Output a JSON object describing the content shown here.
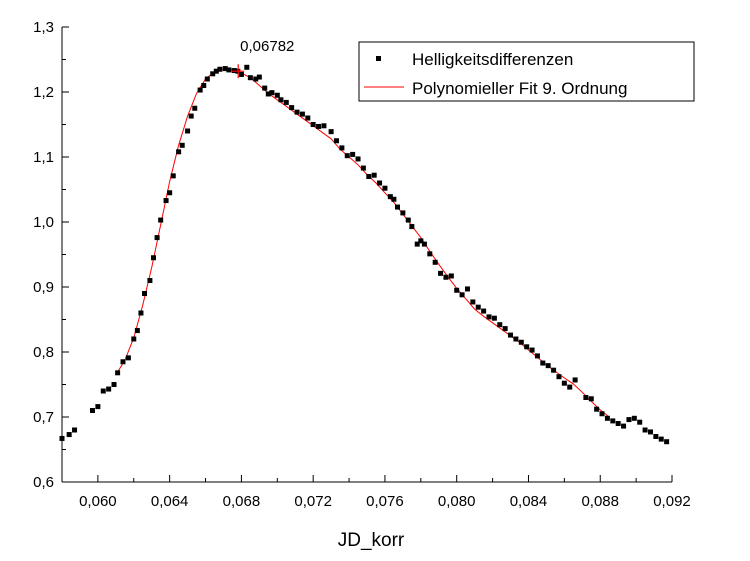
{
  "chart_data": {
    "type": "scatter",
    "title": "",
    "xlabel": "JD_korr",
    "ylabel": "",
    "xlim": [
      0.058,
      0.092
    ],
    "ylim": [
      0.6,
      1.3
    ],
    "x_ticks": [
      0.06,
      0.064,
      0.068,
      0.072,
      0.076,
      0.08,
      0.084,
      0.088,
      0.092
    ],
    "x_tick_labels": [
      "0,060",
      "0,064",
      "0,068",
      "0,072",
      "0,076",
      "0,080",
      "0,084",
      "0,088",
      "0,092"
    ],
    "y_ticks": [
      0.6,
      0.7,
      0.8,
      0.9,
      1.0,
      1.1,
      1.2,
      1.3
    ],
    "y_tick_labels": [
      "0,6",
      "0,7",
      "0,8",
      "0,9",
      "1,0",
      "1,1",
      "1,2",
      "1,3"
    ],
    "grid": false,
    "legend_position": "top-right",
    "annotations": [
      {
        "text": "0,06782",
        "x": 0.06782,
        "y": 1.232
      }
    ],
    "colors": {
      "points": "#000000",
      "fit": "#ff0000",
      "axes": "#000000"
    },
    "series": [
      {
        "name": "Helligkeitsdifferenzen",
        "kind": "points",
        "points": [
          [
            0.058,
            0.667
          ],
          [
            0.0584,
            0.673
          ],
          [
            0.0587,
            0.68
          ],
          [
            0.0597,
            0.71
          ],
          [
            0.06,
            0.716
          ],
          [
            0.0603,
            0.74
          ],
          [
            0.0606,
            0.743
          ],
          [
            0.0609,
            0.75
          ],
          [
            0.0611,
            0.768
          ],
          [
            0.0614,
            0.785
          ],
          [
            0.0617,
            0.791
          ],
          [
            0.062,
            0.82
          ],
          [
            0.0622,
            0.833
          ],
          [
            0.0624,
            0.86
          ],
          [
            0.0626,
            0.89
          ],
          [
            0.0629,
            0.91
          ],
          [
            0.0631,
            0.945
          ],
          [
            0.0633,
            0.976
          ],
          [
            0.0635,
            1.003
          ],
          [
            0.0638,
            1.033
          ],
          [
            0.064,
            1.045
          ],
          [
            0.0642,
            1.071
          ],
          [
            0.0645,
            1.108
          ],
          [
            0.0647,
            1.118
          ],
          [
            0.065,
            1.14
          ],
          [
            0.0652,
            1.163
          ],
          [
            0.0654,
            1.175
          ],
          [
            0.0657,
            1.203
          ],
          [
            0.0659,
            1.21
          ],
          [
            0.0661,
            1.22
          ],
          [
            0.0664,
            1.228
          ],
          [
            0.0666,
            1.232
          ],
          [
            0.0668,
            1.235
          ],
          [
            0.0671,
            1.236
          ],
          [
            0.0673,
            1.234
          ],
          [
            0.0676,
            1.233
          ],
          [
            0.0678,
            1.232
          ],
          [
            0.068,
            1.227
          ],
          [
            0.0683,
            1.238
          ],
          [
            0.0685,
            1.222
          ],
          [
            0.0688,
            1.22
          ],
          [
            0.069,
            1.223
          ],
          [
            0.0693,
            1.206
          ],
          [
            0.0695,
            1.197
          ],
          [
            0.0697,
            1.199
          ],
          [
            0.07,
            1.195
          ],
          [
            0.0702,
            1.188
          ],
          [
            0.0705,
            1.184
          ],
          [
            0.0708,
            1.176
          ],
          [
            0.0711,
            1.169
          ],
          [
            0.0714,
            1.166
          ],
          [
            0.0717,
            1.16
          ],
          [
            0.072,
            1.15
          ],
          [
            0.0723,
            1.147
          ],
          [
            0.0726,
            1.148
          ],
          [
            0.073,
            1.139
          ],
          [
            0.0733,
            1.125
          ],
          [
            0.0736,
            1.114
          ],
          [
            0.0739,
            1.102
          ],
          [
            0.0742,
            1.104
          ],
          [
            0.0745,
            1.097
          ],
          [
            0.0748,
            1.083
          ],
          [
            0.0751,
            1.07
          ],
          [
            0.0754,
            1.072
          ],
          [
            0.0757,
            1.06
          ],
          [
            0.076,
            1.052
          ],
          [
            0.0763,
            1.039
          ],
          [
            0.0765,
            1.035
          ],
          [
            0.0767,
            1.023
          ],
          [
            0.077,
            1.014
          ],
          [
            0.0773,
            1.003
          ],
          [
            0.0775,
            0.993
          ],
          [
            0.0778,
            0.966
          ],
          [
            0.078,
            0.971
          ],
          [
            0.0782,
            0.966
          ],
          [
            0.0785,
            0.951
          ],
          [
            0.0788,
            0.938
          ],
          [
            0.0791,
            0.921
          ],
          [
            0.0794,
            0.915
          ],
          [
            0.0797,
            0.917
          ],
          [
            0.08,
            0.895
          ],
          [
            0.0803,
            0.888
          ],
          [
            0.0806,
            0.897
          ],
          [
            0.0809,
            0.877
          ],
          [
            0.0812,
            0.869
          ],
          [
            0.0815,
            0.863
          ],
          [
            0.0818,
            0.854
          ],
          [
            0.0821,
            0.852
          ],
          [
            0.0824,
            0.842
          ],
          [
            0.0827,
            0.836
          ],
          [
            0.083,
            0.826
          ],
          [
            0.0833,
            0.82
          ],
          [
            0.0836,
            0.815
          ],
          [
            0.0839,
            0.808
          ],
          [
            0.0842,
            0.803
          ],
          [
            0.0845,
            0.794
          ],
          [
            0.0848,
            0.783
          ],
          [
            0.0851,
            0.779
          ],
          [
            0.0854,
            0.772
          ],
          [
            0.0857,
            0.762
          ],
          [
            0.086,
            0.752
          ],
          [
            0.0863,
            0.746
          ],
          [
            0.0866,
            0.757
          ],
          [
            0.0872,
            0.73
          ],
          [
            0.0875,
            0.728
          ],
          [
            0.0878,
            0.712
          ],
          [
            0.0881,
            0.705
          ],
          [
            0.0884,
            0.698
          ],
          [
            0.0887,
            0.694
          ],
          [
            0.089,
            0.69
          ],
          [
            0.0893,
            0.686
          ],
          [
            0.0896,
            0.696
          ],
          [
            0.0899,
            0.698
          ],
          [
            0.0902,
            0.692
          ],
          [
            0.0905,
            0.68
          ],
          [
            0.0908,
            0.677
          ],
          [
            0.0911,
            0.67
          ],
          [
            0.0914,
            0.666
          ],
          [
            0.0917,
            0.662
          ]
        ]
      },
      {
        "name": "Polynomieller Fit 9. Ordnung",
        "kind": "line",
        "points": [
          [
            0.061,
            0.765
          ],
          [
            0.0615,
            0.787
          ],
          [
            0.062,
            0.822
          ],
          [
            0.0625,
            0.872
          ],
          [
            0.063,
            0.93
          ],
          [
            0.0635,
            0.996
          ],
          [
            0.064,
            1.062
          ],
          [
            0.0645,
            1.118
          ],
          [
            0.065,
            1.163
          ],
          [
            0.0655,
            1.198
          ],
          [
            0.066,
            1.22
          ],
          [
            0.0665,
            1.231
          ],
          [
            0.067,
            1.235
          ],
          [
            0.0675,
            1.234
          ],
          [
            0.0678,
            1.232
          ],
          [
            0.068,
            1.229
          ],
          [
            0.0685,
            1.222
          ],
          [
            0.069,
            1.21
          ],
          [
            0.0695,
            1.198
          ],
          [
            0.07,
            1.188
          ],
          [
            0.0705,
            1.178
          ],
          [
            0.071,
            1.168
          ],
          [
            0.0715,
            1.158
          ],
          [
            0.072,
            1.148
          ],
          [
            0.0725,
            1.138
          ],
          [
            0.073,
            1.128
          ],
          [
            0.0735,
            1.112
          ],
          [
            0.074,
            1.1
          ],
          [
            0.0745,
            1.088
          ],
          [
            0.075,
            1.073
          ],
          [
            0.0755,
            1.06
          ],
          [
            0.076,
            1.045
          ],
          [
            0.0765,
            1.03
          ],
          [
            0.077,
            1.012
          ],
          [
            0.0775,
            0.994
          ],
          [
            0.078,
            0.976
          ],
          [
            0.0785,
            0.955
          ],
          [
            0.079,
            0.935
          ],
          [
            0.0795,
            0.916
          ],
          [
            0.08,
            0.898
          ],
          [
            0.0805,
            0.882
          ],
          [
            0.081,
            0.866
          ],
          [
            0.0815,
            0.855
          ],
          [
            0.082,
            0.845
          ],
          [
            0.0825,
            0.835
          ],
          [
            0.083,
            0.825
          ],
          [
            0.0835,
            0.815
          ],
          [
            0.084,
            0.803
          ],
          [
            0.0845,
            0.792
          ],
          [
            0.085,
            0.78
          ],
          [
            0.0855,
            0.77
          ],
          [
            0.086,
            0.76
          ],
          [
            0.0865,
            0.751
          ],
          [
            0.087,
            0.738
          ],
          [
            0.0875,
            0.724
          ],
          [
            0.088,
            0.711
          ],
          [
            0.0885,
            0.7
          ]
        ]
      }
    ]
  }
}
